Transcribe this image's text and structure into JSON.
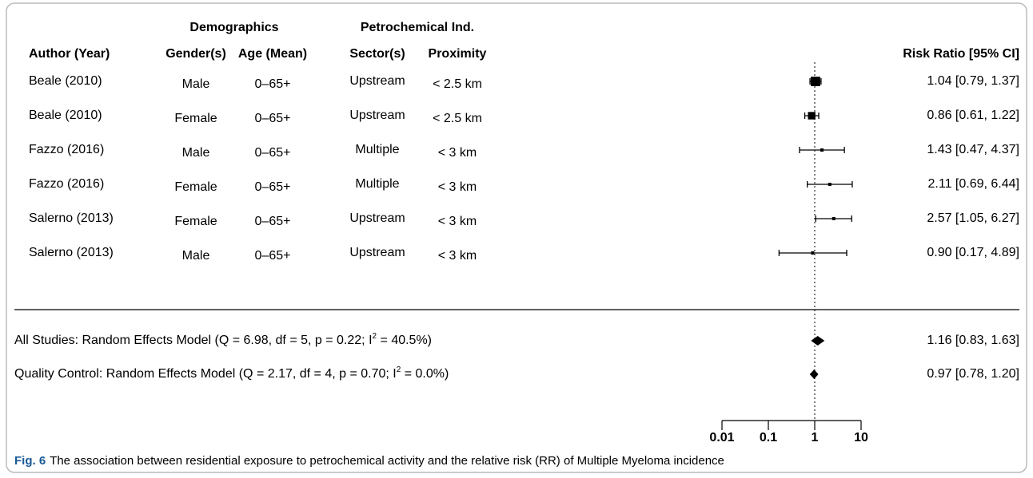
{
  "chart_data": {
    "type": "forest",
    "group_headers": {
      "demographics": "Demographics",
      "petrochemical": "Petrochemical Ind."
    },
    "column_headers": {
      "author": "Author (Year)",
      "gender": "Gender(s)",
      "age": "Age (Mean)",
      "sector": "Sector(s)",
      "proximity": "Proximity",
      "estimate": "Risk Ratio [95% CI]"
    },
    "studies": [
      {
        "author": "Beale (2010)",
        "gender": "Male",
        "age": "0–65+",
        "sector": "Upstream",
        "proximity": "< 2.5 km",
        "estimate": 1.04,
        "lower": 0.79,
        "upper": 1.37,
        "value_label": "1.04 [0.79, 1.37]"
      },
      {
        "author": "Beale (2010)",
        "gender": "Female",
        "age": "0–65+",
        "sector": "Upstream",
        "proximity": "< 2.5 km",
        "estimate": 0.86,
        "lower": 0.61,
        "upper": 1.22,
        "value_label": "0.86 [0.61, 1.22]"
      },
      {
        "author": "Fazzo (2016)",
        "gender": "Male",
        "age": "0–65+",
        "sector": "Multiple",
        "proximity": "< 3 km",
        "estimate": 1.43,
        "lower": 0.47,
        "upper": 4.37,
        "value_label": "1.43 [0.47, 4.37]"
      },
      {
        "author": "Fazzo (2016)",
        "gender": "Female",
        "age": "0–65+",
        "sector": "Multiple",
        "proximity": "< 3 km",
        "estimate": 2.11,
        "lower": 0.69,
        "upper": 6.44,
        "value_label": "2.11 [0.69, 6.44]"
      },
      {
        "author": "Salerno (2013)",
        "gender": "Female",
        "age": "0–65+",
        "sector": "Upstream",
        "proximity": "< 3 km",
        "estimate": 2.57,
        "lower": 1.05,
        "upper": 6.27,
        "value_label": "2.57 [1.05, 6.27]"
      },
      {
        "author": "Salerno (2013)",
        "gender": "Male",
        "age": "0–65+",
        "sector": "Upstream",
        "proximity": "< 3 km",
        "estimate": 0.9,
        "lower": 0.17,
        "upper": 4.89,
        "value_label": "0.90 [0.17, 4.89]"
      }
    ],
    "summaries": [
      {
        "label_parts": [
          "All Studies: Random Effects Model (Q = 6.98, df = 5, p = 0.22; I",
          "2",
          " = 40.5%)"
        ],
        "estimate": 1.16,
        "lower": 0.83,
        "upper": 1.63,
        "value_label": "1.16 [0.83, 1.63]"
      },
      {
        "label_parts": [
          "Quality Control: Random Effects Model (Q = 2.17, df = 4, p = 0.70; I",
          "2",
          " = 0.0%)"
        ],
        "estimate": 0.97,
        "lower": 0.78,
        "upper": 1.2,
        "value_label": "0.97 [0.78, 1.20]"
      }
    ],
    "xscale": "log",
    "xlim": [
      0.01,
      10
    ],
    "xticks": [
      0.01,
      0.1,
      1,
      10
    ],
    "reference_line": 1,
    "figure_label": "Fig. 6",
    "caption": "The association between residential exposure to petrochemical activity and the relative risk (RR) of Multiple Myeloma incidence"
  }
}
